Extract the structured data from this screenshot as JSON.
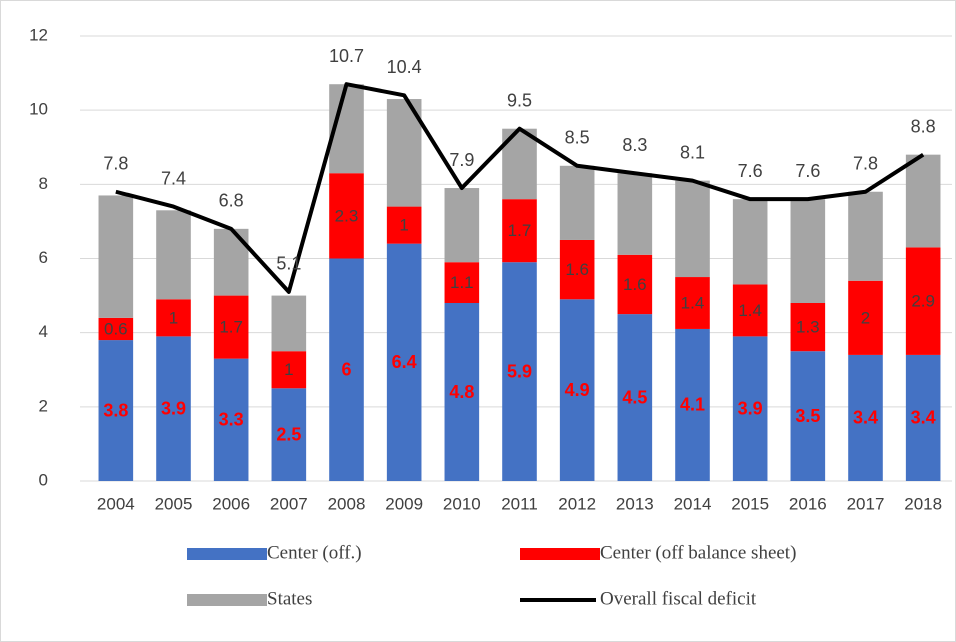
{
  "chart_data": {
    "type": "bar",
    "stacked": true,
    "categories": [
      "2004",
      "2005",
      "2006",
      "2007",
      "2008",
      "2009",
      "2010",
      "2011",
      "2012",
      "2013",
      "2014",
      "2015",
      "2016",
      "2017",
      "2018"
    ],
    "series": [
      {
        "name": "Center (off.)",
        "color": "#4472c4",
        "values": [
          3.8,
          3.9,
          3.3,
          2.5,
          6,
          6.4,
          4.8,
          5.9,
          4.9,
          4.5,
          4.1,
          3.9,
          3.5,
          3.4,
          3.4
        ],
        "labels": true
      },
      {
        "name": "Center (off balance sheet)",
        "color": "#ff0000",
        "values": [
          0.6,
          1,
          1.7,
          1,
          2.3,
          1,
          1.1,
          1.7,
          1.6,
          1.6,
          1.4,
          1.4,
          1.3,
          2,
          2.9
        ],
        "labels": true
      },
      {
        "name": "States",
        "color": "#a5a5a5",
        "values": [
          3.3,
          2.4,
          1.8,
          1.5,
          2.4,
          2.9,
          2.0,
          1.9,
          2.0,
          2.2,
          2.6,
          2.3,
          2.8,
          2.4,
          2.5
        ],
        "labels": false
      },
      {
        "name": "Overall fiscal deficit",
        "color": "#000000",
        "type": "line",
        "values": [
          7.8,
          7.4,
          6.8,
          5.1,
          10.7,
          10.4,
          7.9,
          9.5,
          8.5,
          8.3,
          8.1,
          7.6,
          7.6,
          7.8,
          8.8
        ],
        "labels": true
      }
    ],
    "ylim": [
      0,
      12
    ],
    "yticks": [
      0,
      2,
      4,
      6,
      8,
      10,
      12
    ],
    "grid": true
  }
}
